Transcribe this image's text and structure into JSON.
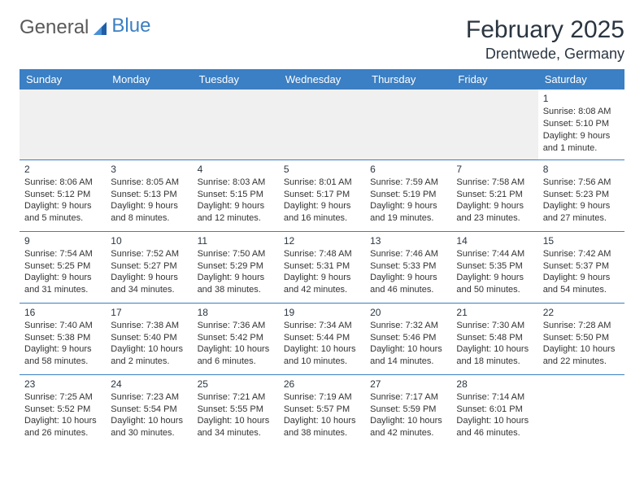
{
  "logo": {
    "text1": "General",
    "text2": "Blue"
  },
  "title": "February 2025",
  "location": "Drentwede, Germany",
  "colors": {
    "header_bg": "#3b7fc4",
    "header_text": "#ffffff",
    "rule": "#3b7fc4",
    "body_text": "#333333",
    "empty_bg": "#f0f0f0",
    "page_bg": "#ffffff"
  },
  "weekdays": [
    "Sunday",
    "Monday",
    "Tuesday",
    "Wednesday",
    "Thursday",
    "Friday",
    "Saturday"
  ],
  "weeks": [
    [
      null,
      null,
      null,
      null,
      null,
      null,
      {
        "n": "1",
        "sr": "Sunrise: 8:08 AM",
        "ss": "Sunset: 5:10 PM",
        "dl": "Daylight: 9 hours and 1 minute."
      }
    ],
    [
      {
        "n": "2",
        "sr": "Sunrise: 8:06 AM",
        "ss": "Sunset: 5:12 PM",
        "dl": "Daylight: 9 hours and 5 minutes."
      },
      {
        "n": "3",
        "sr": "Sunrise: 8:05 AM",
        "ss": "Sunset: 5:13 PM",
        "dl": "Daylight: 9 hours and 8 minutes."
      },
      {
        "n": "4",
        "sr": "Sunrise: 8:03 AM",
        "ss": "Sunset: 5:15 PM",
        "dl": "Daylight: 9 hours and 12 minutes."
      },
      {
        "n": "5",
        "sr": "Sunrise: 8:01 AM",
        "ss": "Sunset: 5:17 PM",
        "dl": "Daylight: 9 hours and 16 minutes."
      },
      {
        "n": "6",
        "sr": "Sunrise: 7:59 AM",
        "ss": "Sunset: 5:19 PM",
        "dl": "Daylight: 9 hours and 19 minutes."
      },
      {
        "n": "7",
        "sr": "Sunrise: 7:58 AM",
        "ss": "Sunset: 5:21 PM",
        "dl": "Daylight: 9 hours and 23 minutes."
      },
      {
        "n": "8",
        "sr": "Sunrise: 7:56 AM",
        "ss": "Sunset: 5:23 PM",
        "dl": "Daylight: 9 hours and 27 minutes."
      }
    ],
    [
      {
        "n": "9",
        "sr": "Sunrise: 7:54 AM",
        "ss": "Sunset: 5:25 PM",
        "dl": "Daylight: 9 hours and 31 minutes."
      },
      {
        "n": "10",
        "sr": "Sunrise: 7:52 AM",
        "ss": "Sunset: 5:27 PM",
        "dl": "Daylight: 9 hours and 34 minutes."
      },
      {
        "n": "11",
        "sr": "Sunrise: 7:50 AM",
        "ss": "Sunset: 5:29 PM",
        "dl": "Daylight: 9 hours and 38 minutes."
      },
      {
        "n": "12",
        "sr": "Sunrise: 7:48 AM",
        "ss": "Sunset: 5:31 PM",
        "dl": "Daylight: 9 hours and 42 minutes."
      },
      {
        "n": "13",
        "sr": "Sunrise: 7:46 AM",
        "ss": "Sunset: 5:33 PM",
        "dl": "Daylight: 9 hours and 46 minutes."
      },
      {
        "n": "14",
        "sr": "Sunrise: 7:44 AM",
        "ss": "Sunset: 5:35 PM",
        "dl": "Daylight: 9 hours and 50 minutes."
      },
      {
        "n": "15",
        "sr": "Sunrise: 7:42 AM",
        "ss": "Sunset: 5:37 PM",
        "dl": "Daylight: 9 hours and 54 minutes."
      }
    ],
    [
      {
        "n": "16",
        "sr": "Sunrise: 7:40 AM",
        "ss": "Sunset: 5:38 PM",
        "dl": "Daylight: 9 hours and 58 minutes."
      },
      {
        "n": "17",
        "sr": "Sunrise: 7:38 AM",
        "ss": "Sunset: 5:40 PM",
        "dl": "Daylight: 10 hours and 2 minutes."
      },
      {
        "n": "18",
        "sr": "Sunrise: 7:36 AM",
        "ss": "Sunset: 5:42 PM",
        "dl": "Daylight: 10 hours and 6 minutes."
      },
      {
        "n": "19",
        "sr": "Sunrise: 7:34 AM",
        "ss": "Sunset: 5:44 PM",
        "dl": "Daylight: 10 hours and 10 minutes."
      },
      {
        "n": "20",
        "sr": "Sunrise: 7:32 AM",
        "ss": "Sunset: 5:46 PM",
        "dl": "Daylight: 10 hours and 14 minutes."
      },
      {
        "n": "21",
        "sr": "Sunrise: 7:30 AM",
        "ss": "Sunset: 5:48 PM",
        "dl": "Daylight: 10 hours and 18 minutes."
      },
      {
        "n": "22",
        "sr": "Sunrise: 7:28 AM",
        "ss": "Sunset: 5:50 PM",
        "dl": "Daylight: 10 hours and 22 minutes."
      }
    ],
    [
      {
        "n": "23",
        "sr": "Sunrise: 7:25 AM",
        "ss": "Sunset: 5:52 PM",
        "dl": "Daylight: 10 hours and 26 minutes."
      },
      {
        "n": "24",
        "sr": "Sunrise: 7:23 AM",
        "ss": "Sunset: 5:54 PM",
        "dl": "Daylight: 10 hours and 30 minutes."
      },
      {
        "n": "25",
        "sr": "Sunrise: 7:21 AM",
        "ss": "Sunset: 5:55 PM",
        "dl": "Daylight: 10 hours and 34 minutes."
      },
      {
        "n": "26",
        "sr": "Sunrise: 7:19 AM",
        "ss": "Sunset: 5:57 PM",
        "dl": "Daylight: 10 hours and 38 minutes."
      },
      {
        "n": "27",
        "sr": "Sunrise: 7:17 AM",
        "ss": "Sunset: 5:59 PM",
        "dl": "Daylight: 10 hours and 42 minutes."
      },
      {
        "n": "28",
        "sr": "Sunrise: 7:14 AM",
        "ss": "Sunset: 6:01 PM",
        "dl": "Daylight: 10 hours and 46 minutes."
      },
      null
    ]
  ]
}
